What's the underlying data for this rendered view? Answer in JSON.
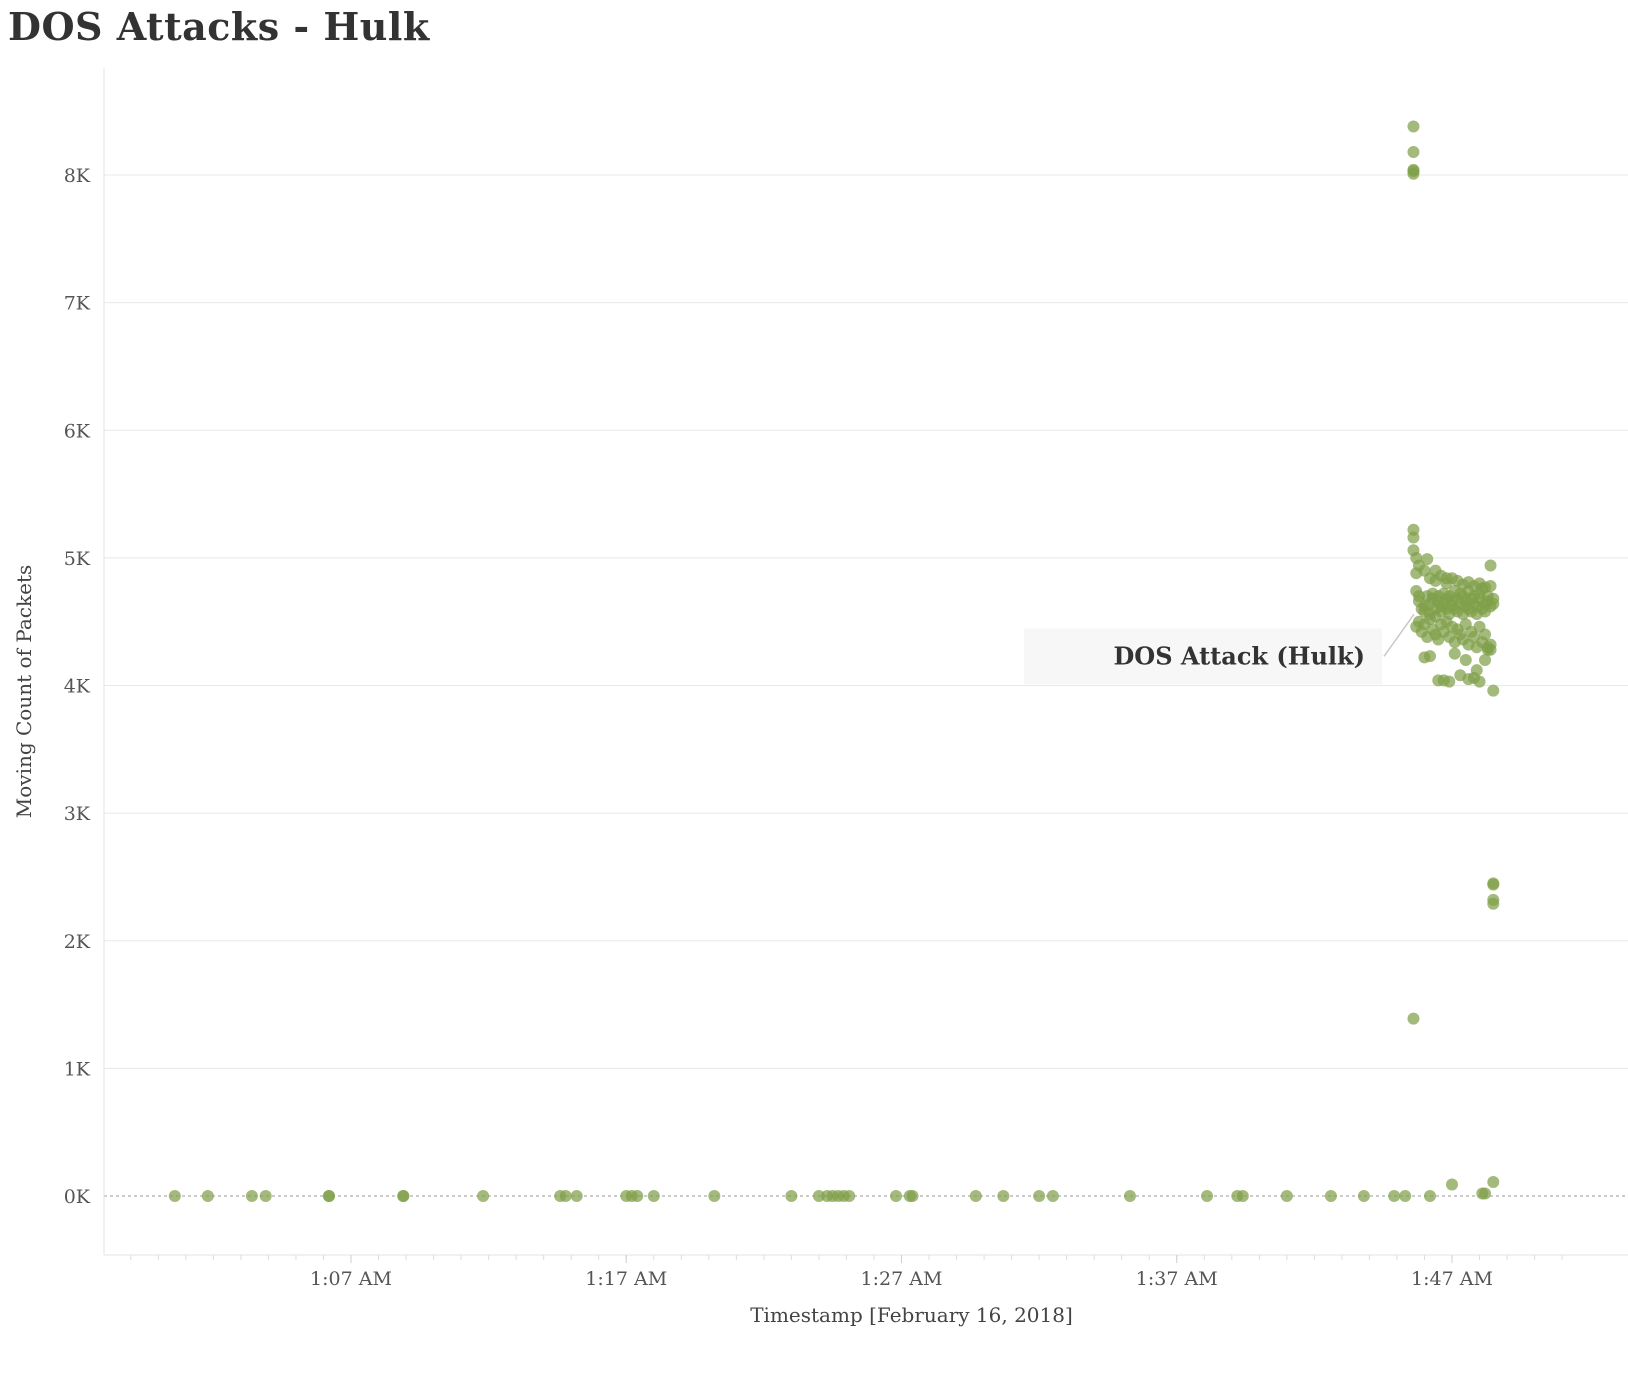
{
  "chart_data": {
    "type": "scatter",
    "title": "DOS Attacks - Hulk",
    "xlabel": "Timestamp [February 16, 2018]",
    "ylabel": "Moving Count of Packets",
    "x_ticks": [
      "1:07 AM",
      "1:17 AM",
      "1:27 AM",
      "1:37 AM",
      "1:47 AM"
    ],
    "x_tick_minutes": [
      67,
      77,
      87,
      97,
      107
    ],
    "xlim_minutes": [
      58,
      111.9
    ],
    "y_ticks": [
      "0K",
      "1K",
      "2K",
      "3K",
      "4K",
      "5K",
      "6K",
      "7K",
      "8K"
    ],
    "y_tick_values": [
      0,
      1000,
      2000,
      3000,
      4000,
      5000,
      6000,
      7000,
      8000
    ],
    "ylim": [
      -450,
      8850
    ],
    "grid": true,
    "zero_line": "dashed",
    "marker_color": "#7fa04a",
    "annotation": {
      "text": "DOS Attack (Hulk)",
      "x_min": 105.4,
      "y": 4620
    },
    "baseline_points": {
      "y": 0,
      "x_minutes": [
        60.6,
        61.8,
        63.4,
        63.9,
        66.2,
        66.2,
        68.9,
        68.9,
        71.8,
        74.6,
        74.8,
        75.2,
        77.0,
        77.2,
        77.4,
        78.0,
        80.2,
        83.0,
        84.0,
        84.3,
        84.5,
        84.7,
        84.9,
        85.1,
        86.8,
        87.3,
        87.4,
        89.7,
        90.7,
        92.0,
        92.5,
        95.3,
        98.1,
        99.2,
        99.4,
        101.0,
        102.6,
        103.8,
        104.9,
        105.3,
        106.2
      ]
    },
    "series": [
      {
        "x_minutes": [
          107.0,
          108.1,
          108.2
        ],
        "y": [
          90,
          20,
          20
        ]
      },
      {
        "x_minutes": [
          105.6,
          105.6,
          105.6,
          105.6,
          105.6,
          105.6
        ],
        "y": [
          8380,
          8180,
          8040,
          8030,
          8010,
          1390
        ]
      },
      {
        "x_minutes": [
          108.5,
          108.5,
          108.5,
          108.5,
          108.5
        ],
        "y": [
          2450,
          2440,
          2320,
          2290,
          110
        ]
      },
      {
        "x_minutes": [
          105.6,
          105.6,
          105.6,
          105.7,
          105.7,
          105.7,
          105.8,
          105.8,
          105.9,
          106.0,
          106.0,
          106.1,
          106.2,
          106.2,
          106.3,
          106.3,
          106.4,
          106.4,
          106.5,
          106.5,
          106.6,
          106.6,
          106.7,
          106.7,
          106.8,
          106.8,
          106.9,
          106.9,
          107.0,
          107.0,
          107.1,
          107.1,
          107.2,
          107.2,
          107.3,
          107.3,
          107.4,
          107.4,
          107.5,
          107.5,
          107.6,
          107.6,
          107.7,
          107.7,
          107.8,
          107.8,
          107.9,
          107.9,
          108.0,
          108.0,
          108.1,
          108.1,
          108.2,
          108.2,
          108.3,
          108.3,
          108.4,
          108.4,
          108.5,
          108.5,
          105.7,
          105.8,
          105.9,
          106.0,
          106.1,
          106.2,
          106.3,
          106.4,
          106.5,
          106.6,
          106.7,
          106.8,
          106.9,
          107.0,
          107.1,
          107.2,
          107.3,
          107.4,
          107.5,
          107.6,
          107.7,
          107.8,
          107.9,
          108.0,
          108.1,
          108.2,
          108.3,
          108.4,
          105.8,
          106.0,
          106.2,
          106.4,
          106.6,
          106.8,
          107.0,
          107.2,
          107.4,
          107.6,
          107.8,
          108.0,
          108.2,
          108.4
        ],
        "y": [
          5220,
          5160,
          5060,
          5000,
          4880,
          4740,
          4700,
          4660,
          4600,
          4620,
          4580,
          4700,
          4640,
          4560,
          4680,
          4720,
          4600,
          4540,
          4660,
          4700,
          4620,
          4580,
          4720,
          4640,
          4600,
          4680,
          4560,
          4700,
          4660,
          4620,
          4740,
          4600,
          4580,
          4680,
          4720,
          4640,
          4560,
          4700,
          4620,
          4660,
          4600,
          4740,
          4580,
          4680,
          4640,
          4700,
          4620,
          4560,
          4680,
          4720,
          4600,
          4760,
          4640,
          4580,
          4700,
          4660,
          4620,
          4780,
          4680,
          4640,
          4460,
          4500,
          4420,
          4480,
          4380,
          4520,
          4440,
          4400,
          4360,
          4480,
          4420,
          4500,
          4380,
          4460,
          4340,
          4440,
          4400,
          4360,
          4480,
          4320,
          4420,
          4380,
          4300,
          4460,
          4340,
          4400,
          4300,
          4320,
          4940,
          4900,
          4840,
          4820,
          4860,
          4800,
          4840,
          4820,
          4790,
          4810,
          4780,
          4800,
          4770,
          4940
        ]
      },
      {
        "x_minutes": [
          106.0,
          106.2,
          106.5,
          106.7,
          106.9,
          107.3,
          107.6,
          107.8,
          108.0,
          108.2,
          108.4,
          108.5,
          106.1,
          106.4,
          106.8,
          107.1,
          107.5,
          107.9,
          108.3
        ],
        "y": [
          4220,
          4230,
          4040,
          4040,
          4030,
          4080,
          4050,
          4060,
          4030,
          4200,
          4280,
          3960,
          4990,
          4900,
          4840,
          4250,
          4200,
          4120,
          4280
        ]
      }
    ]
  }
}
